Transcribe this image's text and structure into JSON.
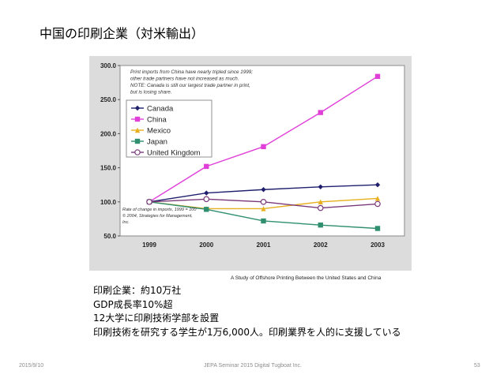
{
  "slide": {
    "title": "中国の印刷企業（対米輸出）",
    "caption": "A Study of Offshore Printing Between the United States and China",
    "bullets": [
      "印刷企業：約10万社",
      "GDP成長率10%超",
      "12大学に印刷技術学部を設置",
      "印刷技術を研究する学生が1万6,000人。印刷業界を人的に支援している"
    ],
    "footer": {
      "date": "2015/9/10",
      "center": "JEPA Seminar 2015 Digital  Tugboat Inc.",
      "page": "53"
    }
  },
  "chart_data": {
    "type": "line",
    "x": [
      "1999",
      "2000",
      "2001",
      "2002",
      "2003"
    ],
    "ylim": [
      50,
      300
    ],
    "yticks": [
      "300.0",
      "250.0",
      "200.0",
      "150.0",
      "100.0",
      "50.0"
    ],
    "grid": false,
    "legend_position": "top-left",
    "note": [
      "Print imports from China have nearly tripled since 1999;",
      "other trade partners have not increased as much.",
      "NOTE: Canada is still our largest trade partner in print,",
      "but is losing share."
    ],
    "footnote": [
      "Rate of change in imports, 1999 = 100",
      "© 2004, Strategies for Management,",
      "Inc."
    ],
    "series": [
      {
        "name": "Canada",
        "color": "#1f1f6e",
        "marker": "diamond",
        "values": [
          100,
          113,
          118,
          122,
          125
        ]
      },
      {
        "name": "China",
        "color": "#e040d8",
        "marker": "square",
        "values": [
          100,
          152,
          181,
          231,
          284
        ]
      },
      {
        "name": "Mexico",
        "color": "#e8b020",
        "marker": "triangle",
        "values": [
          100,
          90,
          90,
          100,
          105
        ]
      },
      {
        "name": "Japan",
        "color": "#2f8f6f",
        "marker": "square",
        "values": [
          100,
          89,
          72,
          66,
          61
        ]
      },
      {
        "name": "United Kingdom",
        "color": "#7a3a7a",
        "marker": "circle",
        "values": [
          100,
          104,
          100,
          91,
          97
        ]
      }
    ]
  }
}
